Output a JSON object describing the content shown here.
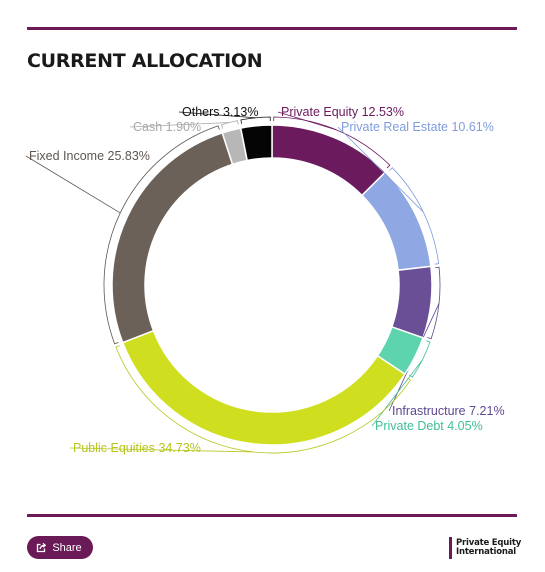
{
  "title": "CURRENT ALLOCATION",
  "colors": {
    "accent": "#6b1a58",
    "leader": "#8a8a8a"
  },
  "share": {
    "label": "Share",
    "icon": "share-icon"
  },
  "logo": {
    "line1": "Private Equity",
    "line2": "International"
  },
  "chart_data": {
    "type": "pie",
    "variant": "donut",
    "title": "CURRENT ALLOCATION",
    "legend": "none",
    "slices": [
      {
        "label": "Private Equity 12.53%",
        "name": "Private Equity",
        "value": 12.53,
        "color": "#6b1a5e",
        "label_color": "#6b1a5e"
      },
      {
        "label": "Private Real Estate 10.61%",
        "name": "Private Real Estate",
        "value": 10.61,
        "color": "#8fa8e3",
        "label_color": "#7f9ddc"
      },
      {
        "label": "Infrastructure 7.21%",
        "name": "Infrastructure",
        "value": 7.21,
        "color": "#6a4f96",
        "label_color": "#5e4890"
      },
      {
        "label": "Private Debt 4.05%",
        "name": "Private Debt",
        "value": 4.05,
        "color": "#5dd4ae",
        "label_color": "#3fbf98"
      },
      {
        "label": "Public Equities 34.73%",
        "name": "Public Equities",
        "value": 34.73,
        "color": "#cfdf20",
        "label_color": "#b6c51c"
      },
      {
        "label": "Fixed Income 25.83%",
        "name": "Fixed Income",
        "value": 25.83,
        "color": "#6b6158",
        "label_color": "#5f5650"
      },
      {
        "label": "Cash 1.90%",
        "name": "Cash",
        "value": 1.9,
        "color": "#b7b7b7",
        "label_color": "#a8a8a8"
      },
      {
        "label": "Others 3.13%",
        "name": "Others",
        "value": 3.13,
        "color": "#050505",
        "label_color": "#111111"
      }
    ]
  }
}
